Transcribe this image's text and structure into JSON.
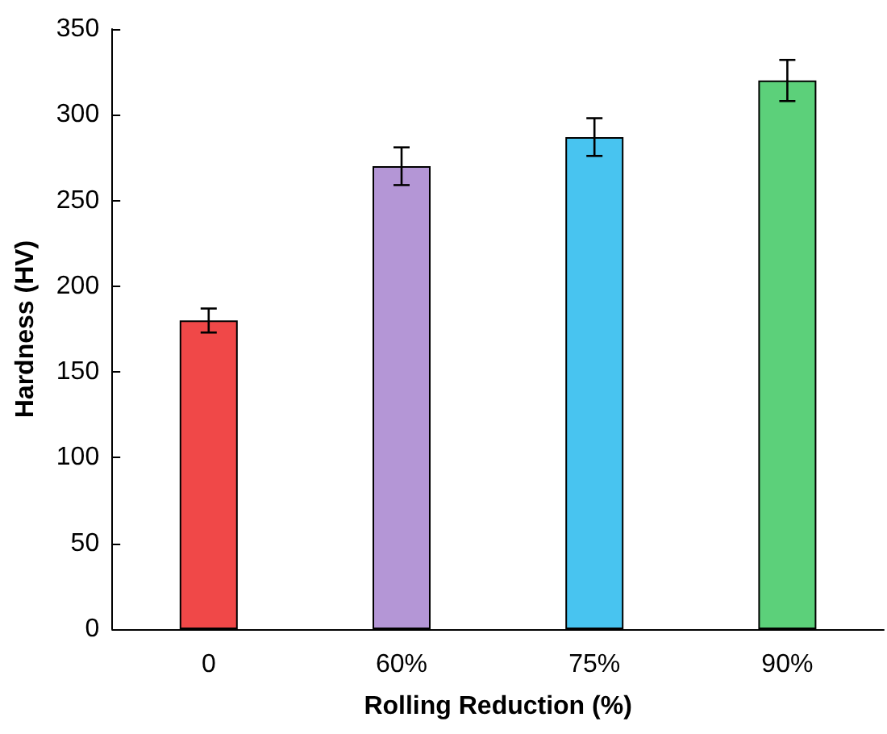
{
  "chart_data": {
    "type": "bar",
    "xlabel": "Rolling Reduction (%)",
    "ylabel": "Hardness (HV)",
    "categories": [
      "0",
      "60%",
      "75%",
      "90%"
    ],
    "values": [
      180,
      270,
      287,
      320
    ],
    "errors": [
      7,
      11,
      11,
      12
    ],
    "colors": [
      "#f04848",
      "#b496d6",
      "#48c4f0",
      "#5cd07a"
    ],
    "ylim": [
      0,
      350
    ],
    "yticks": [
      0,
      50,
      100,
      150,
      200,
      250,
      300,
      350
    ],
    "grid": false
  }
}
